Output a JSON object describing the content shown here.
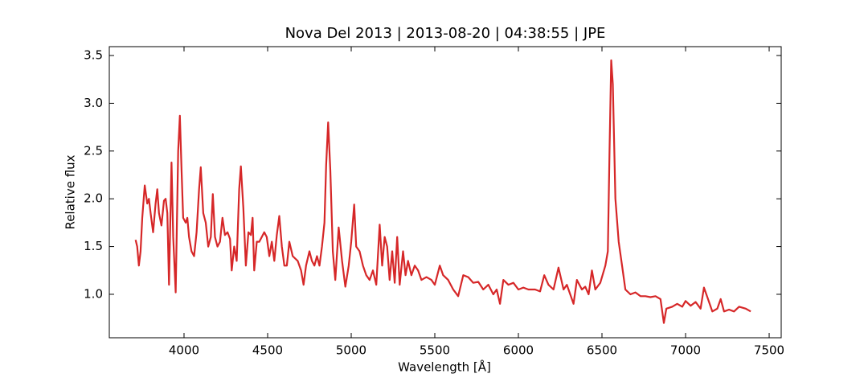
{
  "chart_data": {
    "type": "line",
    "title": "Nova Del 2013 | 2013-08-20 | 04:38:55 | JPE",
    "x_label": "Wavelength [Å]",
    "y_label": "Relative flux",
    "color": "#d62728",
    "x": [
      3710,
      3720,
      3730,
      3740,
      3750,
      3765,
      3780,
      3790,
      3800,
      3815,
      3830,
      3840,
      3850,
      3865,
      3880,
      3890,
      3900,
      3910,
      3925,
      3935,
      3950,
      3965,
      3975,
      3985,
      3995,
      4010,
      4020,
      4030,
      4045,
      4060,
      4075,
      4090,
      4100,
      4115,
      4130,
      4145,
      4160,
      4172,
      4185,
      4200,
      4215,
      4230,
      4245,
      4260,
      4275,
      4285,
      4300,
      4315,
      4330,
      4340,
      4355,
      4370,
      4385,
      4400,
      4410,
      4420,
      4435,
      4450,
      4465,
      4480,
      4495,
      4510,
      4525,
      4540,
      4555,
      4570,
      4585,
      4600,
      4615,
      4630,
      4650,
      4680,
      4700,
      4715,
      4730,
      4750,
      4765,
      4780,
      4795,
      4810,
      4825,
      4840,
      4850,
      4862,
      4875,
      4890,
      4905,
      4925,
      4945,
      4965,
      4985,
      5000,
      5018,
      5030,
      5050,
      5070,
      5090,
      5110,
      5130,
      5150,
      5170,
      5185,
      5200,
      5215,
      5230,
      5245,
      5260,
      5275,
      5290,
      5310,
      5325,
      5340,
      5360,
      5380,
      5400,
      5420,
      5450,
      5480,
      5500,
      5530,
      5550,
      5580,
      5610,
      5640,
      5670,
      5700,
      5730,
      5760,
      5790,
      5820,
      5850,
      5870,
      5890,
      5910,
      5940,
      5970,
      6000,
      6030,
      6060,
      6100,
      6130,
      6155,
      6180,
      6210,
      6240,
      6270,
      6290,
      6310,
      6330,
      6350,
      6380,
      6400,
      6420,
      6440,
      6460,
      6490,
      6520,
      6535,
      6545,
      6555,
      6565,
      6580,
      6600,
      6620,
      6640,
      6670,
      6700,
      6730,
      6760,
      6790,
      6820,
      6850,
      6870,
      6885,
      6920,
      6950,
      6980,
      7000,
      7030,
      7060,
      7090,
      7110,
      7130,
      7160,
      7190,
      7210,
      7230,
      7260,
      7290,
      7320,
      7360,
      7390
    ],
    "values": [
      1.57,
      1.5,
      1.3,
      1.45,
      1.8,
      2.14,
      1.95,
      2.0,
      1.85,
      1.65,
      1.95,
      2.1,
      1.85,
      1.72,
      1.98,
      2.0,
      1.85,
      1.1,
      2.38,
      1.6,
      1.02,
      2.5,
      2.87,
      2.3,
      1.8,
      1.75,
      1.8,
      1.6,
      1.45,
      1.4,
      1.65,
      2.1,
      2.33,
      1.85,
      1.75,
      1.5,
      1.6,
      2.05,
      1.6,
      1.5,
      1.55,
      1.8,
      1.62,
      1.65,
      1.58,
      1.25,
      1.5,
      1.35,
      2.1,
      2.34,
      1.9,
      1.3,
      1.65,
      1.62,
      1.8,
      1.25,
      1.55,
      1.55,
      1.6,
      1.65,
      1.6,
      1.4,
      1.55,
      1.35,
      1.62,
      1.82,
      1.5,
      1.3,
      1.3,
      1.55,
      1.4,
      1.35,
      1.25,
      1.1,
      1.3,
      1.45,
      1.35,
      1.3,
      1.4,
      1.3,
      1.5,
      1.75,
      2.35,
      2.8,
      2.3,
      1.45,
      1.15,
      1.7,
      1.35,
      1.08,
      1.3,
      1.55,
      1.94,
      1.5,
      1.45,
      1.3,
      1.2,
      1.15,
      1.25,
      1.1,
      1.73,
      1.3,
      1.6,
      1.5,
      1.15,
      1.45,
      1.12,
      1.6,
      1.1,
      1.45,
      1.2,
      1.35,
      1.2,
      1.3,
      1.25,
      1.15,
      1.18,
      1.15,
      1.1,
      1.3,
      1.2,
      1.15,
      1.05,
      0.98,
      1.2,
      1.18,
      1.12,
      1.13,
      1.05,
      1.1,
      1.0,
      1.05,
      0.9,
      1.15,
      1.1,
      1.12,
      1.05,
      1.07,
      1.05,
      1.05,
      1.03,
      1.2,
      1.1,
      1.05,
      1.28,
      1.05,
      1.1,
      1.0,
      0.9,
      1.15,
      1.05,
      1.08,
      1.0,
      1.25,
      1.05,
      1.12,
      1.3,
      1.45,
      2.5,
      3.45,
      3.2,
      2.0,
      1.55,
      1.3,
      1.05,
      1.0,
      1.02,
      0.98,
      0.98,
      0.97,
      0.98,
      0.95,
      0.7,
      0.85,
      0.87,
      0.9,
      0.87,
      0.93,
      0.88,
      0.92,
      0.85,
      1.07,
      0.97,
      0.82,
      0.85,
      0.95,
      0.82,
      0.84,
      0.82,
      0.87,
      0.85,
      0.82
    ],
    "xlim": [
      3553,
      7572
    ],
    "ylim": [
      0.545,
      3.593
    ],
    "xticks": [
      4000,
      4500,
      5000,
      5500,
      6000,
      6500,
      7000,
      7500
    ],
    "yticks": [
      {
        "value": 1,
        "label": "1.0"
      },
      1.5,
      {
        "value": 2,
        "label": "2.0"
      },
      2.5,
      {
        "value": 3,
        "label": "3.0"
      },
      3.5
    ]
  }
}
